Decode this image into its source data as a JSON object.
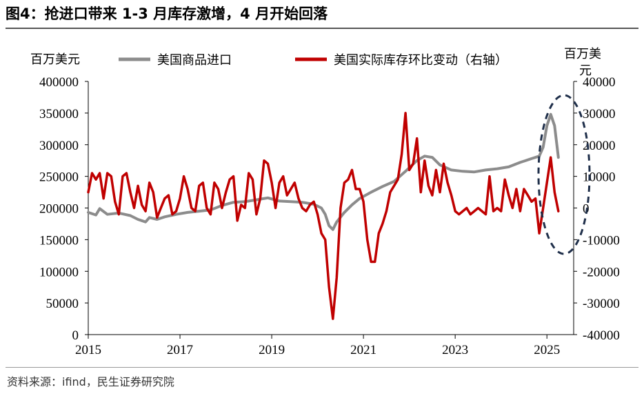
{
  "title": "图4：抢进口带来 1-3 月库存激增，4 月开始回落",
  "source": "资料来源：ifind，民生证券研究院",
  "colors": {
    "imports": "#8c8c8c",
    "inventory": "#c00000",
    "highlight": "#1f2f4a"
  },
  "chart_data": {
    "type": "line",
    "x_axis": {
      "ticks": [
        "2015",
        "2017",
        "2019",
        "2021",
        "2023",
        "2025"
      ],
      "range": [
        "2015-01",
        "2025-04"
      ]
    },
    "y_left": {
      "unit": "百万美元",
      "ticks": [
        "400000",
        "350000",
        "300000",
        "250000",
        "200000",
        "150000",
        "100000",
        "50000",
        "0"
      ],
      "range": [
        0,
        400000
      ]
    },
    "y_right": {
      "unit": "百万美元",
      "ticks": [
        "40000",
        "30000",
        "20000",
        "10000",
        "0",
        "-10000",
        "-20000",
        "-30000",
        "-40000"
      ],
      "range": [
        -40000,
        40000
      ]
    },
    "legend": "top",
    "annotation": "dashed ellipse highlighting early 2025",
    "series": [
      {
        "name": "美国商品进口",
        "axis": "left",
        "points": [
          [
            "2015-01",
            193000
          ],
          [
            "2015-03",
            189000
          ],
          [
            "2015-04",
            199000
          ],
          [
            "2015-06",
            190000
          ],
          [
            "2015-09",
            192000
          ],
          [
            "2015-12",
            188000
          ],
          [
            "2016-02",
            182000
          ],
          [
            "2016-04",
            178000
          ],
          [
            "2016-05",
            185000
          ],
          [
            "2016-07",
            182000
          ],
          [
            "2016-09",
            186000
          ],
          [
            "2016-12",
            190000
          ],
          [
            "2017-03",
            193000
          ],
          [
            "2017-06",
            195000
          ],
          [
            "2017-09",
            197000
          ],
          [
            "2017-12",
            204000
          ],
          [
            "2018-03",
            209000
          ],
          [
            "2018-06",
            210000
          ],
          [
            "2018-09",
            213000
          ],
          [
            "2018-12",
            216000
          ],
          [
            "2019-03",
            211000
          ],
          [
            "2019-06",
            210000
          ],
          [
            "2019-09",
            209000
          ],
          [
            "2019-12",
            206000
          ],
          [
            "2020-02",
            200000
          ],
          [
            "2020-03",
            190000
          ],
          [
            "2020-04",
            172000
          ],
          [
            "2020-05",
            166000
          ],
          [
            "2020-06",
            178000
          ],
          [
            "2020-08",
            193000
          ],
          [
            "2020-10",
            205000
          ],
          [
            "2020-12",
            215000
          ],
          [
            "2021-03",
            225000
          ],
          [
            "2021-06",
            234000
          ],
          [
            "2021-09",
            242000
          ],
          [
            "2021-12",
            258000
          ],
          [
            "2022-03",
            275000
          ],
          [
            "2022-05",
            282000
          ],
          [
            "2022-07",
            280000
          ],
          [
            "2022-09",
            268000
          ],
          [
            "2022-12",
            260000
          ],
          [
            "2023-03",
            258000
          ],
          [
            "2023-06",
            257000
          ],
          [
            "2023-09",
            260000
          ],
          [
            "2023-12",
            262000
          ],
          [
            "2024-03",
            265000
          ],
          [
            "2024-06",
            272000
          ],
          [
            "2024-09",
            278000
          ],
          [
            "2024-11",
            282000
          ],
          [
            "2024-12",
            296000
          ],
          [
            "2025-01",
            330000
          ],
          [
            "2025-02",
            348000
          ],
          [
            "2025-03",
            330000
          ],
          [
            "2025-04",
            280000
          ]
        ]
      },
      {
        "name": "美国实际库存环比变动（右轴）",
        "axis": "right",
        "points": [
          [
            "2015-01",
            5000
          ],
          [
            "2015-02",
            11000
          ],
          [
            "2015-03",
            9000
          ],
          [
            "2015-04",
            11000
          ],
          [
            "2015-05",
            3000
          ],
          [
            "2015-06",
            11000
          ],
          [
            "2015-07",
            10000
          ],
          [
            "2015-08",
            2000
          ],
          [
            "2015-09",
            -2000
          ],
          [
            "2015-10",
            10000
          ],
          [
            "2015-11",
            11000
          ],
          [
            "2015-12",
            5000
          ],
          [
            "2016-01",
            0
          ],
          [
            "2016-02",
            7000
          ],
          [
            "2016-03",
            1000
          ],
          [
            "2016-04",
            -1000
          ],
          [
            "2016-05",
            8000
          ],
          [
            "2016-06",
            5000
          ],
          [
            "2016-07",
            -3000
          ],
          [
            "2016-08",
            0
          ],
          [
            "2016-09",
            3000
          ],
          [
            "2016-10",
            4000
          ],
          [
            "2016-11",
            -2000
          ],
          [
            "2016-12",
            -1000
          ],
          [
            "2017-01",
            3000
          ],
          [
            "2017-02",
            10000
          ],
          [
            "2017-03",
            6000
          ],
          [
            "2017-04",
            0
          ],
          [
            "2017-05",
            -1000
          ],
          [
            "2017-06",
            7000
          ],
          [
            "2017-07",
            8000
          ],
          [
            "2017-08",
            0
          ],
          [
            "2017-09",
            -2000
          ],
          [
            "2017-10",
            8000
          ],
          [
            "2017-11",
            6000
          ],
          [
            "2017-12",
            0
          ],
          [
            "2018-01",
            5000
          ],
          [
            "2018-02",
            9000
          ],
          [
            "2018-03",
            10000
          ],
          [
            "2018-04",
            -4000
          ],
          [
            "2018-05",
            1000
          ],
          [
            "2018-06",
            0
          ],
          [
            "2018-07",
            11000
          ],
          [
            "2018-08",
            9000
          ],
          [
            "2018-09",
            -2000
          ],
          [
            "2018-10",
            3000
          ],
          [
            "2018-11",
            15000
          ],
          [
            "2018-12",
            14000
          ],
          [
            "2019-01",
            8000
          ],
          [
            "2019-02",
            0
          ],
          [
            "2019-03",
            8000
          ],
          [
            "2019-04",
            10000
          ],
          [
            "2019-05",
            4000
          ],
          [
            "2019-06",
            6000
          ],
          [
            "2019-07",
            8000
          ],
          [
            "2019-08",
            3000
          ],
          [
            "2019-09",
            0
          ],
          [
            "2019-10",
            -1000
          ],
          [
            "2019-11",
            1000
          ],
          [
            "2019-12",
            2000
          ],
          [
            "2020-01",
            -2000
          ],
          [
            "2020-02",
            -8000
          ],
          [
            "2020-03",
            -10000
          ],
          [
            "2020-04",
            -25000
          ],
          [
            "2020-05",
            -35000
          ],
          [
            "2020-06",
            -22000
          ],
          [
            "2020-07",
            0
          ],
          [
            "2020-08",
            8000
          ],
          [
            "2020-09",
            9000
          ],
          [
            "2020-10",
            12000
          ],
          [
            "2020-11",
            6000
          ],
          [
            "2020-12",
            6000
          ],
          [
            "2021-01",
            2000
          ],
          [
            "2021-02",
            -10000
          ],
          [
            "2021-03",
            -17000
          ],
          [
            "2021-04",
            -17000
          ],
          [
            "2021-05",
            -8000
          ],
          [
            "2021-06",
            -5000
          ],
          [
            "2021-07",
            -1000
          ],
          [
            "2021-08",
            5000
          ],
          [
            "2021-09",
            7000
          ],
          [
            "2021-10",
            9000
          ],
          [
            "2021-11",
            17000
          ],
          [
            "2021-12",
            30000
          ],
          [
            "2022-01",
            12000
          ],
          [
            "2022-02",
            14000
          ],
          [
            "2022-03",
            22000
          ],
          [
            "2022-04",
            5000
          ],
          [
            "2022-05",
            15000
          ],
          [
            "2022-06",
            7000
          ],
          [
            "2022-07",
            4000
          ],
          [
            "2022-08",
            12000
          ],
          [
            "2022-09",
            5000
          ],
          [
            "2022-10",
            14000
          ],
          [
            "2022-11",
            8000
          ],
          [
            "2022-12",
            4000
          ],
          [
            "2023-01",
            -1000
          ],
          [
            "2023-02",
            -2000
          ],
          [
            "2023-03",
            -1000
          ],
          [
            "2023-04",
            0
          ],
          [
            "2023-05",
            -2000
          ],
          [
            "2023-06",
            -1000
          ],
          [
            "2023-07",
            0
          ],
          [
            "2023-08",
            -1000
          ],
          [
            "2023-09",
            -2000
          ],
          [
            "2023-10",
            10000
          ],
          [
            "2023-11",
            -1000
          ],
          [
            "2023-12",
            0
          ],
          [
            "2024-01",
            -1000
          ],
          [
            "2024-02",
            9000
          ],
          [
            "2024-03",
            4000
          ],
          [
            "2024-04",
            0
          ],
          [
            "2024-05",
            6000
          ],
          [
            "2024-06",
            -1000
          ],
          [
            "2024-07",
            6000
          ],
          [
            "2024-08",
            4000
          ],
          [
            "2024-09",
            2000
          ],
          [
            "2024-10",
            3000
          ],
          [
            "2024-11",
            -8000
          ],
          [
            "2024-12",
            0
          ],
          [
            "2025-01",
            8000
          ],
          [
            "2025-02",
            16000
          ],
          [
            "2025-03",
            5000
          ],
          [
            "2025-04",
            -1000
          ]
        ]
      }
    ]
  }
}
